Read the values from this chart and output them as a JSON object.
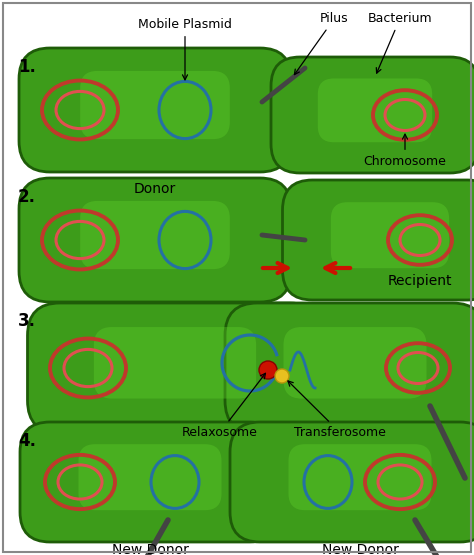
{
  "bg_color": "#ffffff",
  "bact_fill": "#3d9c1a",
  "bact_edge": "#1e5c08",
  "bact_highlight": "#5ecf2a",
  "chrom_color": "#c0392b",
  "chrom_inner": "#e05050",
  "plasmid_color": "#2471a3",
  "pilus_color": "#444444",
  "red_arrow": "#cc1100",
  "step_labels": [
    "1.",
    "2.",
    "3.",
    "4."
  ],
  "annotation_fontsize": 9.0,
  "step_label_fontsize": 12,
  "border_color": "#888888"
}
